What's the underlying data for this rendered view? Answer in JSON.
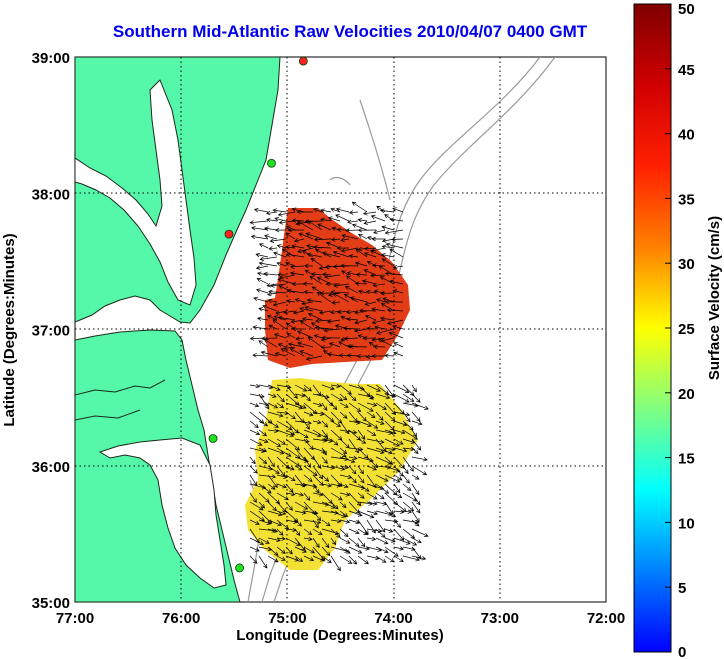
{
  "title": "Southern Mid-Atlantic Raw Velocities 2010/04/07 0400 GMT",
  "colors": {
    "land": "#55f7a8",
    "coast": "#1a2a1a",
    "bathymetry": "#9a9a9a",
    "grid": "#000000"
  },
  "chart_data": {
    "type": "heatmap",
    "title": "Southern Mid-Atlantic Raw Velocities 2010/04/07 0400 GMT",
    "xlabel": "Longitude (Degrees:Minutes)",
    "ylabel": "Latitude (Degrees:Minutes)",
    "x_ticks": [
      "77:00",
      "76:00",
      "75:00",
      "74:00",
      "73:00",
      "72:00"
    ],
    "y_ticks": [
      "39:00",
      "38:00",
      "37:00",
      "36:00",
      "35:00"
    ],
    "xlim": [
      -77,
      -72
    ],
    "ylim": [
      35,
      39
    ],
    "grid": true,
    "colorbar": {
      "label": "Surface Velocity (cm/s)",
      "min": 0,
      "max": 50,
      "ticks": [
        "50",
        "45",
        "40",
        "35",
        "30",
        "25",
        "20",
        "15",
        "10",
        "5",
        "0"
      ]
    },
    "stations": [
      {
        "lon": -74.85,
        "lat": 38.97,
        "color": "red"
      },
      {
        "lon": -75.15,
        "lat": 38.22,
        "color": "green"
      },
      {
        "lon": -75.55,
        "lat": 37.7,
        "color": "red"
      },
      {
        "lon": -75.7,
        "lat": 36.2,
        "color": "green"
      },
      {
        "lon": -75.45,
        "lat": 35.25,
        "color": "green"
      }
    ]
  }
}
